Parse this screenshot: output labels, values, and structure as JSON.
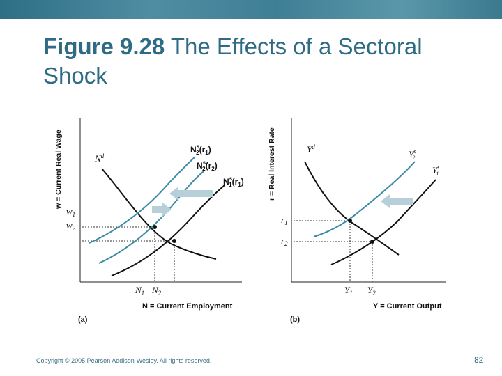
{
  "slide": {
    "title_number": "Figure 9.28",
    "title_text": "The Effects of a Sectoral Shock",
    "copyright": "Copyright © 2005 Pearson Addison-Wesley. All rights reserved.",
    "page_number": "82"
  },
  "colors": {
    "band": "#3f7f95",
    "title": "#2f6b84",
    "teal_curve": "#3a8aa6",
    "black_curve": "#111111",
    "arrow_fill": "#b7cfd8"
  },
  "panel_a": {
    "y_axis_label": "w = Current Real Wage",
    "x_axis_label": "N = Current Employment",
    "panel_label": "(a)",
    "curve_nd": "N",
    "curve_nd_sup": "d",
    "curve_ns2r1": "N",
    "curve_ns2r1_sup": "s",
    "curve_ns2r1_sub": "2",
    "curve_ns2r1_arg": "(r",
    "curve_ns2r1_argsub": "1",
    "curve_ns2r1_close": ")",
    "curve_ns2r2": "N",
    "curve_ns2r2_sup": "s",
    "curve_ns2r2_sub": "2",
    "curve_ns2r2_arg": "(r",
    "curve_ns2r2_argsub": "2",
    "curve_ns2r2_close": ")",
    "curve_ns1r1": "N",
    "curve_ns1r1_sup": "s",
    "curve_ns1r1_sub": "1",
    "curve_ns1r1_arg": "(r",
    "curve_ns1r1_argsub": "1",
    "curve_ns1r1_close": ")",
    "w1": "w",
    "w1_sub": "1",
    "w2": "w",
    "w2_sub": "2",
    "n1": "N",
    "n1_sub": "1",
    "n2": "N",
    "n2_sub": "2"
  },
  "panel_b": {
    "y_axis_label": "r = Real Interest Rate",
    "x_axis_label": "Y = Current Output",
    "panel_label": "(b)",
    "curve_yd": "Y",
    "curve_yd_sup": "d",
    "curve_ys2": "Y",
    "curve_ys2_sup": "s",
    "curve_ys2_sub": "2",
    "curve_ys1": "Y",
    "curve_ys1_sup": "s",
    "curve_ys1_sub": "1",
    "r1": "r",
    "r1_sub": "1",
    "r2": "r",
    "r2_sub": "2",
    "y1": "Y",
    "y1_sub": "1",
    "y2": "Y",
    "y2_sub": "2"
  }
}
